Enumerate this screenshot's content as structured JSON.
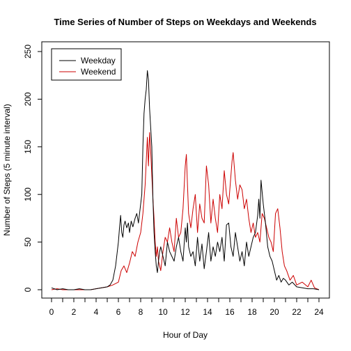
{
  "chart_data": {
    "type": "line",
    "title": "Time Series of Number of Steps on Weekdays and Weekends",
    "xlabel": "Hour of Day",
    "ylabel": "Number of Steps (5 minute interval)",
    "xlim": [
      0,
      24
    ],
    "ylim": [
      0,
      250
    ],
    "x_ticks": [
      "0",
      "2",
      "4",
      "6",
      "8",
      "10",
      "12",
      "14",
      "16",
      "18",
      "20",
      "22",
      "24"
    ],
    "y_ticks": [
      "0",
      "50",
      "100",
      "150",
      "200",
      "250"
    ],
    "grid": false,
    "legend_position": "top-left",
    "series": [
      {
        "name": "Weekday",
        "color": "#000000",
        "x": [
          0,
          0.5,
          1,
          1.5,
          2,
          2.5,
          3,
          3.5,
          4,
          4.5,
          5,
          5.25,
          5.5,
          5.75,
          6,
          6.1,
          6.2,
          6.3,
          6.4,
          6.5,
          6.6,
          6.75,
          6.9,
          7,
          7.15,
          7.3,
          7.5,
          7.65,
          7.8,
          7.95,
          8.1,
          8.2,
          8.3,
          8.4,
          8.5,
          8.6,
          8.7,
          8.8,
          8.9,
          9.0,
          9.1,
          9.2,
          9.3,
          9.4,
          9.5,
          9.6,
          9.7,
          9.8,
          10.0,
          10.2,
          10.4,
          10.6,
          10.8,
          11.0,
          11.2,
          11.4,
          11.6,
          11.8,
          12.0,
          12.1,
          12.2,
          12.3,
          12.5,
          12.7,
          12.9,
          13.1,
          13.3,
          13.5,
          13.7,
          13.9,
          14.1,
          14.3,
          14.5,
          14.7,
          14.9,
          15.1,
          15.3,
          15.5,
          15.7,
          15.9,
          16.1,
          16.3,
          16.5,
          16.7,
          16.9,
          17.1,
          17.3,
          17.5,
          17.7,
          17.9,
          18.1,
          18.3,
          18.5,
          18.6,
          18.7,
          18.8,
          19.0,
          19.2,
          19.4,
          19.6,
          19.8,
          20.0,
          20.2,
          20.4,
          20.6,
          20.8,
          21.0,
          21.3,
          21.6,
          22.0,
          22.5,
          23.0,
          23.5,
          24.0
        ],
        "y": [
          2,
          0,
          1,
          0,
          0,
          1,
          0,
          0,
          1,
          2,
          3,
          5,
          10,
          25,
          50,
          65,
          78,
          60,
          55,
          68,
          72,
          65,
          70,
          60,
          72,
          66,
          75,
          80,
          70,
          85,
          100,
          150,
          185,
          200,
          210,
          230,
          220,
          190,
          170,
          150,
          95,
          60,
          40,
          25,
          18,
          30,
          40,
          45,
          35,
          25,
          50,
          40,
          35,
          30,
          45,
          55,
          40,
          30,
          65,
          50,
          70,
          45,
          35,
          40,
          25,
          55,
          30,
          48,
          22,
          40,
          60,
          30,
          45,
          35,
          50,
          40,
          55,
          30,
          68,
          70,
          45,
          35,
          60,
          45,
          30,
          40,
          25,
          50,
          35,
          45,
          55,
          60,
          78,
          95,
          75,
          115,
          90,
          70,
          45,
          35,
          30,
          20,
          10,
          15,
          8,
          12,
          10,
          5,
          8,
          3,
          2,
          1,
          1,
          0
        ]
      },
      {
        "name": "Weekend",
        "color": "#cc0000",
        "x": [
          0,
          0.5,
          1,
          1.5,
          2,
          2.5,
          3,
          3.5,
          4,
          4.5,
          5,
          5.5,
          6,
          6.25,
          6.5,
          6.75,
          7,
          7.25,
          7.5,
          7.75,
          8,
          8.2,
          8.4,
          8.6,
          8.7,
          8.8,
          8.9,
          9.0,
          9.1,
          9.2,
          9.3,
          9.4,
          9.5,
          9.6,
          9.8,
          10.0,
          10.2,
          10.4,
          10.6,
          10.8,
          11.0,
          11.2,
          11.4,
          11.6,
          11.8,
          12.0,
          12.1,
          12.2,
          12.3,
          12.5,
          12.7,
          12.9,
          13.1,
          13.3,
          13.5,
          13.7,
          13.9,
          14.1,
          14.3,
          14.5,
          14.7,
          14.9,
          15.1,
          15.3,
          15.5,
          15.7,
          15.9,
          16.1,
          16.2,
          16.3,
          16.5,
          16.7,
          16.9,
          17.1,
          17.3,
          17.5,
          17.7,
          17.9,
          18.1,
          18.3,
          18.5,
          18.7,
          18.9,
          19.1,
          19.3,
          19.5,
          19.7,
          19.9,
          20.1,
          20.3,
          20.5,
          20.7,
          20.9,
          21.1,
          21.4,
          21.7,
          22.0,
          22.5,
          23.0,
          23.3,
          23.6,
          24.0
        ],
        "y": [
          0,
          1,
          0,
          0,
          0,
          0,
          0,
          0,
          1,
          2,
          3,
          5,
          8,
          20,
          25,
          18,
          28,
          40,
          35,
          50,
          60,
          80,
          110,
          160,
          130,
          165,
          145,
          120,
          95,
          75,
          50,
          35,
          45,
          30,
          20,
          40,
          55,
          50,
          65,
          50,
          40,
          75,
          55,
          60,
          85,
          130,
          142,
          110,
          80,
          65,
          85,
          100,
          60,
          90,
          75,
          70,
          130,
          110,
          70,
          95,
          75,
          60,
          100,
          85,
          125,
          100,
          90,
          120,
          135,
          144,
          115,
          95,
          110,
          105,
          85,
          95,
          75,
          60,
          70,
          55,
          60,
          50,
          80,
          75,
          65,
          55,
          50,
          40,
          80,
          85,
          65,
          40,
          25,
          20,
          10,
          15,
          5,
          8,
          3,
          10,
          2,
          0
        ]
      }
    ]
  }
}
